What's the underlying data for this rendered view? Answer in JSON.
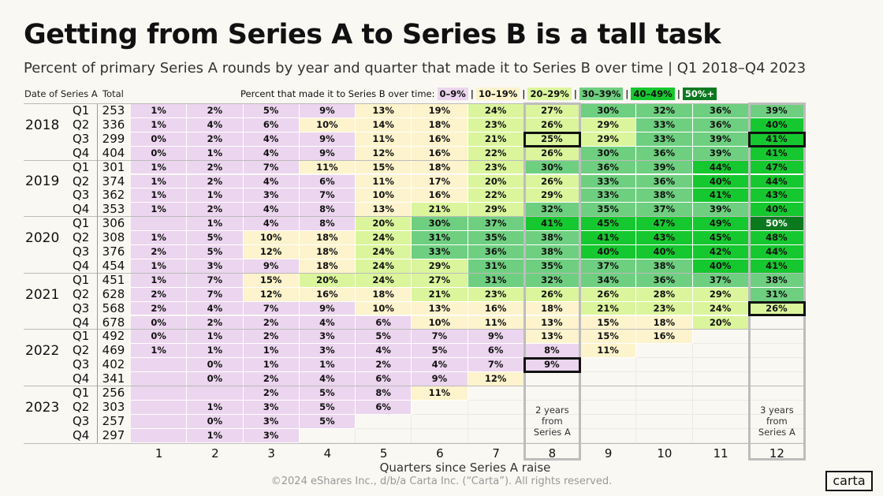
{
  "title": "Getting from Series A to Series B is a tall task",
  "subtitle": "Percent of primary Series A rounds by year and quarter that made it to Series B over time | Q1 2018–Q4 2023",
  "headers": {
    "date": "Date of Series A",
    "total": "Total"
  },
  "legend": {
    "label": "Percent that made it to Series B over time:",
    "buckets": [
      {
        "label": "0–9%",
        "color": "#ecd5ee",
        "text": "#111"
      },
      {
        "label": "10–19%",
        "color": "#fdf3cc",
        "text": "#111"
      },
      {
        "label": "20–29%",
        "color": "#dbf59c",
        "text": "#111"
      },
      {
        "label": "30–39%",
        "color": "#6fcf80",
        "text": "#111"
      },
      {
        "label": "40–49%",
        "color": "#16c82f",
        "text": "#111"
      },
      {
        "label": "50%+",
        "color": "#0b7a1f",
        "text": "#ffffff"
      }
    ]
  },
  "chart_data": {
    "type": "heatmap",
    "title": "Getting from Series A to Series B is a tall task",
    "xlabel": "Quarters since Series A raise",
    "ylabel": "Date of Series A",
    "x": [
      "1",
      "2",
      "3",
      "4",
      "5",
      "6",
      "7",
      "8",
      "9",
      "10",
      "11",
      "12"
    ],
    "rows": [
      {
        "year": "2018",
        "q": "Q1",
        "total": "253",
        "values": [
          "1%",
          "2%",
          "5%",
          "9%",
          "13%",
          "19%",
          "24%",
          "27%",
          "30%",
          "32%",
          "36%",
          "39%"
        ]
      },
      {
        "year": "",
        "q": "Q2",
        "total": "336",
        "values": [
          "1%",
          "4%",
          "6%",
          "10%",
          "14%",
          "18%",
          "23%",
          "26%",
          "29%",
          "33%",
          "36%",
          "40%"
        ]
      },
      {
        "year": "",
        "q": "Q3",
        "total": "299",
        "values": [
          "0%",
          "2%",
          "4%",
          "9%",
          "11%",
          "16%",
          "21%",
          "25%",
          "29%",
          "33%",
          "39%",
          "41%"
        ]
      },
      {
        "year": "",
        "q": "Q4",
        "total": "404",
        "values": [
          "0%",
          "1%",
          "4%",
          "9%",
          "12%",
          "16%",
          "22%",
          "26%",
          "30%",
          "36%",
          "39%",
          "41%"
        ]
      },
      {
        "year": "2019",
        "q": "Q1",
        "total": "301",
        "values": [
          "1%",
          "2%",
          "7%",
          "11%",
          "15%",
          "18%",
          "23%",
          "30%",
          "36%",
          "39%",
          "44%",
          "47%"
        ]
      },
      {
        "year": "",
        "q": "Q2",
        "total": "374",
        "values": [
          "1%",
          "2%",
          "4%",
          "6%",
          "11%",
          "17%",
          "20%",
          "26%",
          "33%",
          "36%",
          "40%",
          "44%"
        ]
      },
      {
        "year": "",
        "q": "Q3",
        "total": "362",
        "values": [
          "1%",
          "1%",
          "3%",
          "7%",
          "10%",
          "16%",
          "22%",
          "29%",
          "33%",
          "38%",
          "41%",
          "43%"
        ]
      },
      {
        "year": "",
        "q": "Q4",
        "total": "353",
        "values": [
          "1%",
          "2%",
          "4%",
          "8%",
          "13%",
          "21%",
          "29%",
          "32%",
          "35%",
          "37%",
          "39%",
          "40%"
        ]
      },
      {
        "year": "2020",
        "q": "Q1",
        "total": "306",
        "values": [
          "",
          "1%",
          "4%",
          "8%",
          "20%",
          "30%",
          "37%",
          "41%",
          "45%",
          "47%",
          "49%",
          "50%"
        ]
      },
      {
        "year": "",
        "q": "Q2",
        "total": "308",
        "values": [
          "1%",
          "5%",
          "10%",
          "18%",
          "24%",
          "31%",
          "35%",
          "38%",
          "41%",
          "43%",
          "45%",
          "48%"
        ]
      },
      {
        "year": "",
        "q": "Q3",
        "total": "376",
        "values": [
          "2%",
          "5%",
          "12%",
          "18%",
          "24%",
          "33%",
          "36%",
          "38%",
          "40%",
          "40%",
          "42%",
          "44%"
        ]
      },
      {
        "year": "",
        "q": "Q4",
        "total": "454",
        "values": [
          "1%",
          "3%",
          "9%",
          "18%",
          "24%",
          "29%",
          "31%",
          "35%",
          "37%",
          "38%",
          "40%",
          "41%"
        ]
      },
      {
        "year": "2021",
        "q": "Q1",
        "total": "451",
        "values": [
          "1%",
          "7%",
          "15%",
          "20%",
          "24%",
          "27%",
          "31%",
          "32%",
          "34%",
          "36%",
          "37%",
          "38%"
        ]
      },
      {
        "year": "",
        "q": "Q2",
        "total": "628",
        "values": [
          "2%",
          "7%",
          "12%",
          "16%",
          "18%",
          "21%",
          "23%",
          "26%",
          "26%",
          "28%",
          "29%",
          "31%"
        ]
      },
      {
        "year": "",
        "q": "Q3",
        "total": "568",
        "values": [
          "2%",
          "4%",
          "7%",
          "9%",
          "10%",
          "13%",
          "16%",
          "18%",
          "21%",
          "23%",
          "24%",
          "26%"
        ]
      },
      {
        "year": "",
        "q": "Q4",
        "total": "678",
        "values": [
          "0%",
          "2%",
          "2%",
          "4%",
          "6%",
          "10%",
          "11%",
          "13%",
          "15%",
          "18%",
          "20%",
          null
        ]
      },
      {
        "year": "2022",
        "q": "Q1",
        "total": "492",
        "values": [
          "0%",
          "1%",
          "2%",
          "3%",
          "5%",
          "7%",
          "9%",
          "13%",
          "15%",
          "16%",
          null,
          null
        ]
      },
      {
        "year": "",
        "q": "Q2",
        "total": "469",
        "values": [
          "1%",
          "1%",
          "1%",
          "3%",
          "4%",
          "5%",
          "6%",
          "8%",
          "11%",
          null,
          null,
          null
        ]
      },
      {
        "year": "",
        "q": "Q3",
        "total": "402",
        "values": [
          "",
          "0%",
          "1%",
          "1%",
          "2%",
          "4%",
          "7%",
          "9%",
          null,
          null,
          null,
          null
        ]
      },
      {
        "year": "",
        "q": "Q4",
        "total": "341",
        "values": [
          "",
          "0%",
          "2%",
          "4%",
          "6%",
          "9%",
          "12%",
          null,
          null,
          null,
          null,
          null
        ]
      },
      {
        "year": "2023",
        "q": "Q1",
        "total": "256",
        "values": [
          "",
          "",
          "2%",
          "5%",
          "8%",
          "11%",
          null,
          null,
          null,
          null,
          null,
          null
        ]
      },
      {
        "year": "",
        "q": "Q2",
        "total": "303",
        "values": [
          "",
          "1%",
          "3%",
          "5%",
          "6%",
          null,
          null,
          null,
          null,
          null,
          null,
          null
        ]
      },
      {
        "year": "",
        "q": "Q3",
        "total": "257",
        "values": [
          "",
          "0%",
          "3%",
          "5%",
          null,
          null,
          null,
          null,
          null,
          null,
          null,
          null
        ]
      },
      {
        "year": "",
        "q": "Q4",
        "total": "297",
        "values": [
          "",
          "1%",
          "3%",
          null,
          null,
          null,
          null,
          null,
          null,
          null,
          null,
          null
        ]
      }
    ],
    "highlighted_cells": [
      {
        "row": 2,
        "col": 8
      },
      {
        "row": 2,
        "col": 12
      },
      {
        "row": 14,
        "col": 12
      },
      {
        "row": 18,
        "col": 8
      }
    ],
    "highlighted_columns": [
      8,
      12
    ],
    "annotations": [
      {
        "col": 8,
        "text": [
          "2 years",
          "from",
          "Series A"
        ]
      },
      {
        "col": 12,
        "text": [
          "3 years",
          "from",
          "Series A"
        ]
      }
    ]
  },
  "footer": {
    "copyright": "©2024 eShares Inc., d/b/a Carta Inc. (“Carta”). All rights reserved.",
    "logo": "carta"
  }
}
